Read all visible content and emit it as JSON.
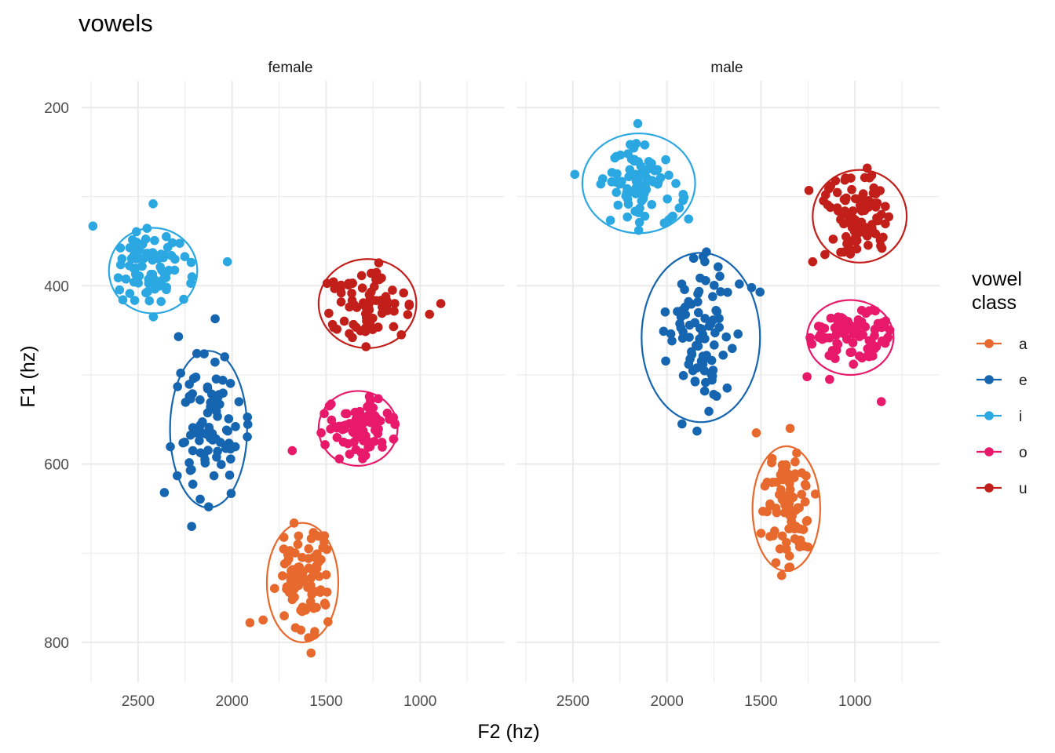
{
  "chart_data": {
    "type": "scatter",
    "title": "vowels",
    "xlabel": "F2 (hz)",
    "ylabel": "F1 (hz)",
    "x_reversed": true,
    "y_reversed": true,
    "xlim": [
      2800,
      550
    ],
    "ylim": [
      170,
      845
    ],
    "x_ticks": [
      2500,
      2000,
      1500,
      1000
    ],
    "x_tick_labels": [
      "2500",
      "2000",
      "1500",
      "1000"
    ],
    "y_ticks": [
      200,
      400,
      600,
      800
    ],
    "y_tick_labels": [
      "200",
      "400",
      "600",
      "800"
    ],
    "grid": true,
    "legend": {
      "title": "vowel\nclass",
      "position": "right"
    },
    "colors": {
      "a": "#E8692D",
      "e": "#1565B0",
      "i": "#2BA8E2",
      "o": "#E8196B",
      "u": "#C21E1A"
    },
    "panels": [
      {
        "name": "female",
        "groups": [
          {
            "vowel": "i",
            "cx": 2420,
            "cy": 382,
            "sx": 95,
            "sy": 24,
            "n": 85,
            "ellipse": {
              "cx": 2420,
              "cy": 383,
              "rx": 235,
              "ry": 48
            }
          },
          {
            "vowel": "e",
            "cx": 2125,
            "cy": 560,
            "sx": 95,
            "sy": 40,
            "n": 85,
            "ellipse": {
              "cx": 2125,
              "cy": 561,
              "rx": 205,
              "ry": 88
            }
          },
          {
            "vowel": "u",
            "cx": 1300,
            "cy": 420,
            "sx": 110,
            "sy": 22,
            "n": 75,
            "ellipse": {
              "cx": 1280,
              "cy": 420,
              "rx": 260,
              "ry": 50
            }
          },
          {
            "vowel": "o",
            "cx": 1330,
            "cy": 560,
            "sx": 90,
            "sy": 18,
            "n": 85,
            "ellipse": {
              "cx": 1330,
              "cy": 560,
              "rx": 210,
              "ry": 42
            }
          },
          {
            "vowel": "a",
            "cx": 1625,
            "cy": 730,
            "sx": 80,
            "sy": 30,
            "n": 85,
            "ellipse": {
              "cx": 1625,
              "cy": 733,
              "rx": 190,
              "ry": 67
            }
          }
        ],
        "outliers": [
          {
            "vowel": "u",
            "points": [
              [
                890,
                420
              ],
              [
                950,
                432
              ],
              [
                1100,
                455
              ]
            ]
          },
          {
            "vowel": "o",
            "points": [
              [
                1680,
                585
              ]
            ]
          },
          {
            "vowel": "e",
            "points": [
              [
                2215,
                670
              ],
              [
                2360,
                632
              ],
              [
                2005,
                633
              ],
              [
                2285,
                457
              ],
              [
                2090,
                437
              ]
            ]
          },
          {
            "vowel": "a",
            "points": [
              [
                1905,
                778
              ],
              [
                1580,
                812
              ],
              [
                1835,
                775
              ],
              [
                1490,
                777
              ]
            ]
          },
          {
            "vowel": "i",
            "points": [
              [
                2420,
                308
              ],
              [
                2740,
                333
              ],
              [
                2025,
                373
              ]
            ]
          }
        ]
      },
      {
        "name": "male",
        "groups": [
          {
            "vowel": "i",
            "cx": 2150,
            "cy": 285,
            "sx": 115,
            "sy": 24,
            "n": 85,
            "ellipse": {
              "cx": 2150,
              "cy": 285,
              "rx": 300,
              "ry": 56
            }
          },
          {
            "vowel": "e",
            "cx": 1820,
            "cy": 455,
            "sx": 90,
            "sy": 40,
            "n": 85,
            "ellipse": {
              "cx": 1820,
              "cy": 458,
              "rx": 315,
              "ry": 95
            }
          },
          {
            "vowel": "u",
            "cx": 980,
            "cy": 320,
            "sx": 90,
            "sy": 22,
            "n": 85,
            "ellipse": {
              "cx": 975,
              "cy": 322,
              "rx": 250,
              "ry": 52
            }
          },
          {
            "vowel": "o",
            "cx": 1020,
            "cy": 455,
            "sx": 100,
            "sy": 15,
            "n": 85,
            "ellipse": {
              "cx": 1025,
              "cy": 458,
              "rx": 230,
              "ry": 42
            }
          },
          {
            "vowel": "a",
            "cx": 1360,
            "cy": 650,
            "sx": 70,
            "sy": 30,
            "n": 85,
            "ellipse": {
              "cx": 1365,
              "cy": 650,
              "rx": 180,
              "ry": 70
            }
          }
        ],
        "outliers": [
          {
            "vowel": "i",
            "points": [
              [
                2490,
                275
              ],
              [
                2155,
                218
              ],
              [
                1885,
                325
              ]
            ]
          },
          {
            "vowel": "e",
            "points": [
              [
                1790,
                362
              ],
              [
                1840,
                563
              ],
              [
                1615,
                398
              ],
              [
                1550,
                402
              ],
              [
                1505,
                407
              ],
              [
                1920,
                555
              ]
            ]
          },
          {
            "vowel": "u",
            "points": [
              [
                935,
                268
              ],
              [
                1225,
                373
              ],
              [
                1160,
                365
              ],
              [
                1245,
                293
              ]
            ]
          },
          {
            "vowel": "o",
            "points": [
              [
                1135,
                505
              ],
              [
                860,
                530
              ],
              [
                1255,
                502
              ]
            ]
          },
          {
            "vowel": "a",
            "points": [
              [
                1390,
                725
              ],
              [
                1525,
                565
              ],
              [
                1250,
                693
              ],
              [
                1345,
                560
              ]
            ]
          }
        ]
      }
    ],
    "legend_entries": [
      "a",
      "e",
      "i",
      "o",
      "u"
    ]
  }
}
